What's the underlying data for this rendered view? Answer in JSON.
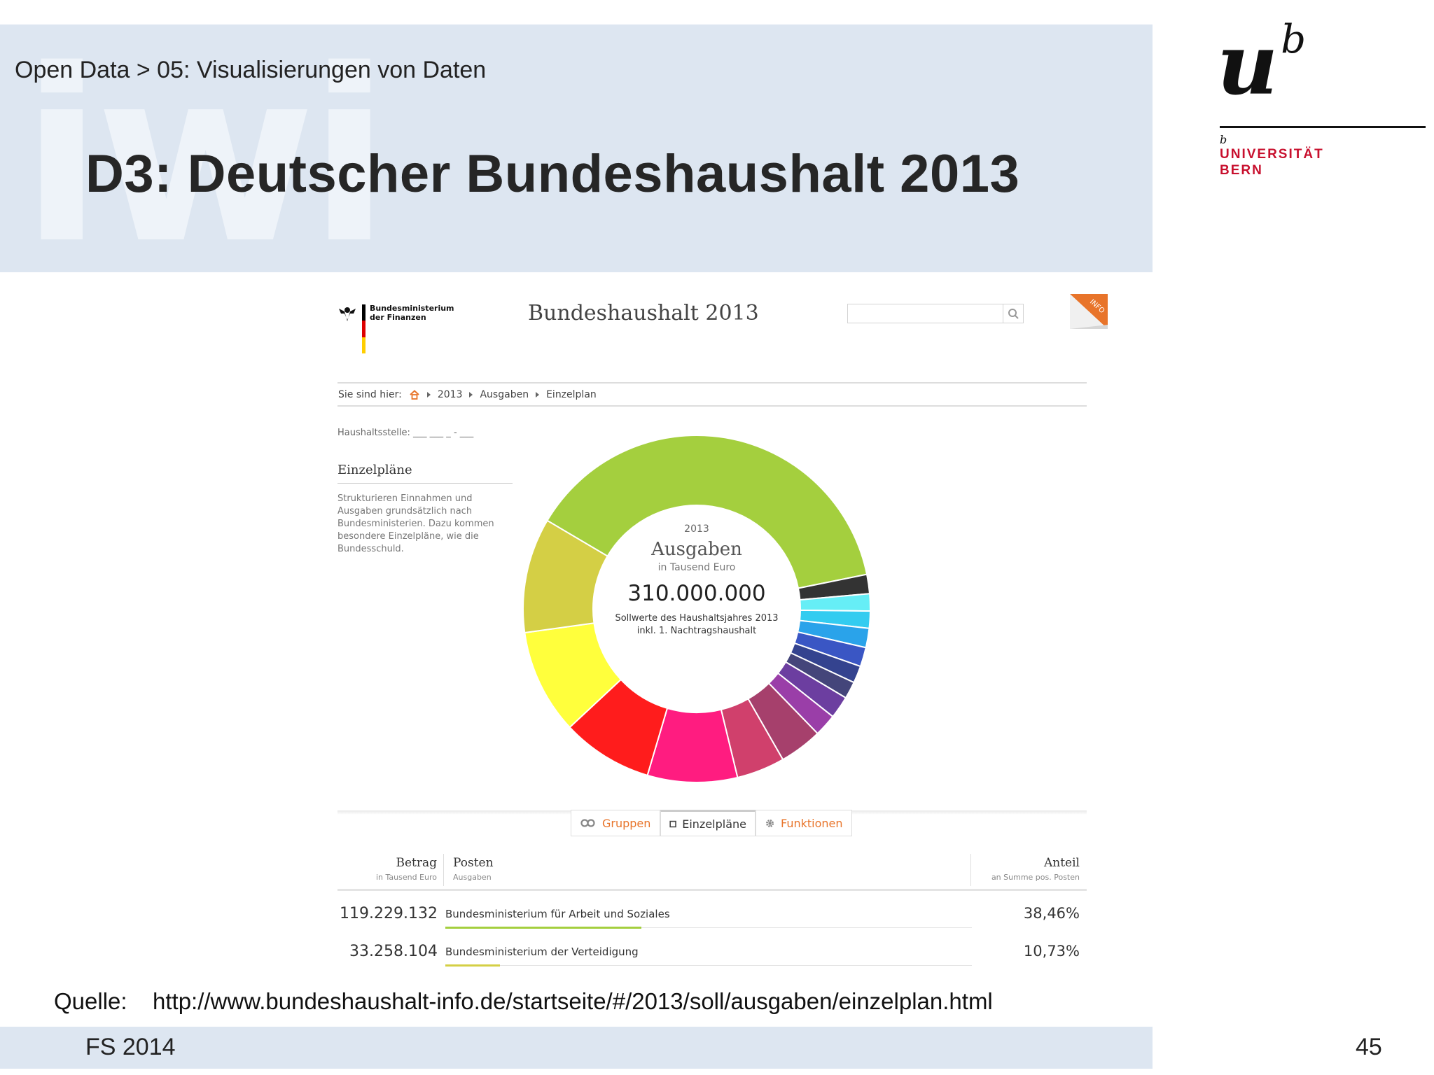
{
  "slide": {
    "breadcrumb": "Open Data > 05: Visualisierungen von Daten",
    "title": "D3: Deutscher Bundeshaushalt 2013",
    "watermark": "iwi",
    "footer_left": "FS 2014",
    "page_number": "45",
    "source_label": "Quelle:",
    "source_url": "http://www.bundeshaushalt-info.de/startseite/#/2013/soll/ausgaben/einzelplan.html"
  },
  "logo": {
    "glyph": "u",
    "sup": "b",
    "small_b": "b",
    "line1": "UNIVERSITÄT",
    "line2": "BERN",
    "color": "#c8102e"
  },
  "website": {
    "ministry_line1": "Bundesministerium",
    "ministry_line2": "der Finanzen",
    "title": "Bundeshaushalt 2013",
    "search_placeholder": "",
    "info_badge": "INFO",
    "breadcrumb": {
      "prefix": "Sie sind hier:",
      "items": [
        "2013",
        "Ausgaben",
        "Einzelplan"
      ]
    },
    "haushaltsstelle": "Haushaltsstelle: ___ ___ _ - ___",
    "sidebar": {
      "heading": "Einzelpläne",
      "description": "Strukturieren Einnahmen und Ausgaben grundsätzlich nach Bundesministerien. Dazu kommen besondere Einzelpläne, wie die Bundesschuld."
    },
    "tabs": [
      {
        "label": "Gruppen",
        "icon": "link-icon"
      },
      {
        "label": "Einzelpläne",
        "icon": "square-icon",
        "active": true
      },
      {
        "label": "Funktionen",
        "icon": "gear-icon"
      }
    ],
    "table": {
      "headers": {
        "betrag": "Betrag",
        "betrag_sub": "in Tausend Euro",
        "posten": "Posten",
        "posten_sub": "Ausgaben",
        "anteil": "Anteil",
        "anteil_sub": "an Summe pos. Posten"
      },
      "rows": [
        {
          "betrag": "119.229.132",
          "posten": "Bundesministerium für Arbeit und Soziales",
          "anteil": "38,46%",
          "share": 0.3846,
          "color": "#a4cf3e"
        },
        {
          "betrag": "33.258.104",
          "posten": "Bundesministerium der Verteidigung",
          "anteil": "10,73%",
          "share": 0.1073,
          "color": "#d4cf45"
        }
      ]
    },
    "accent_color": "#e8742a"
  },
  "chart_data": {
    "type": "pie",
    "center": {
      "year": "2013",
      "title": "Ausgaben",
      "unit": "in Tausend Euro",
      "total": "310.000.000",
      "note_line1": "Sollwerte des Haushaltsjahres 2013",
      "note_line2": "inkl. 1. Nachtragshaushalt"
    },
    "slices": [
      {
        "value": 38.46,
        "color": "#a4cf3e"
      },
      {
        "value": 1.8,
        "color": "#333333"
      },
      {
        "value": 1.6,
        "color": "#66eef6"
      },
      {
        "value": 1.6,
        "color": "#33ccf0"
      },
      {
        "value": 1.8,
        "color": "#2aa3ea"
      },
      {
        "value": 1.8,
        "color": "#3a56c4"
      },
      {
        "value": 1.6,
        "color": "#34438f"
      },
      {
        "value": 1.6,
        "color": "#44457a"
      },
      {
        "value": 2.1,
        "color": "#6c3ea0"
      },
      {
        "value": 2.1,
        "color": "#9a3ea8"
      },
      {
        "value": 4.0,
        "color": "#a6406c"
      },
      {
        "value": 4.5,
        "color": "#d0406c"
      },
      {
        "value": 8.4,
        "color": "#ff1c80"
      },
      {
        "value": 8.5,
        "color": "#ff1c1c"
      },
      {
        "value": 9.8,
        "color": "#ffff3c"
      },
      {
        "value": 10.73,
        "color": "#d4cf45"
      }
    ]
  }
}
